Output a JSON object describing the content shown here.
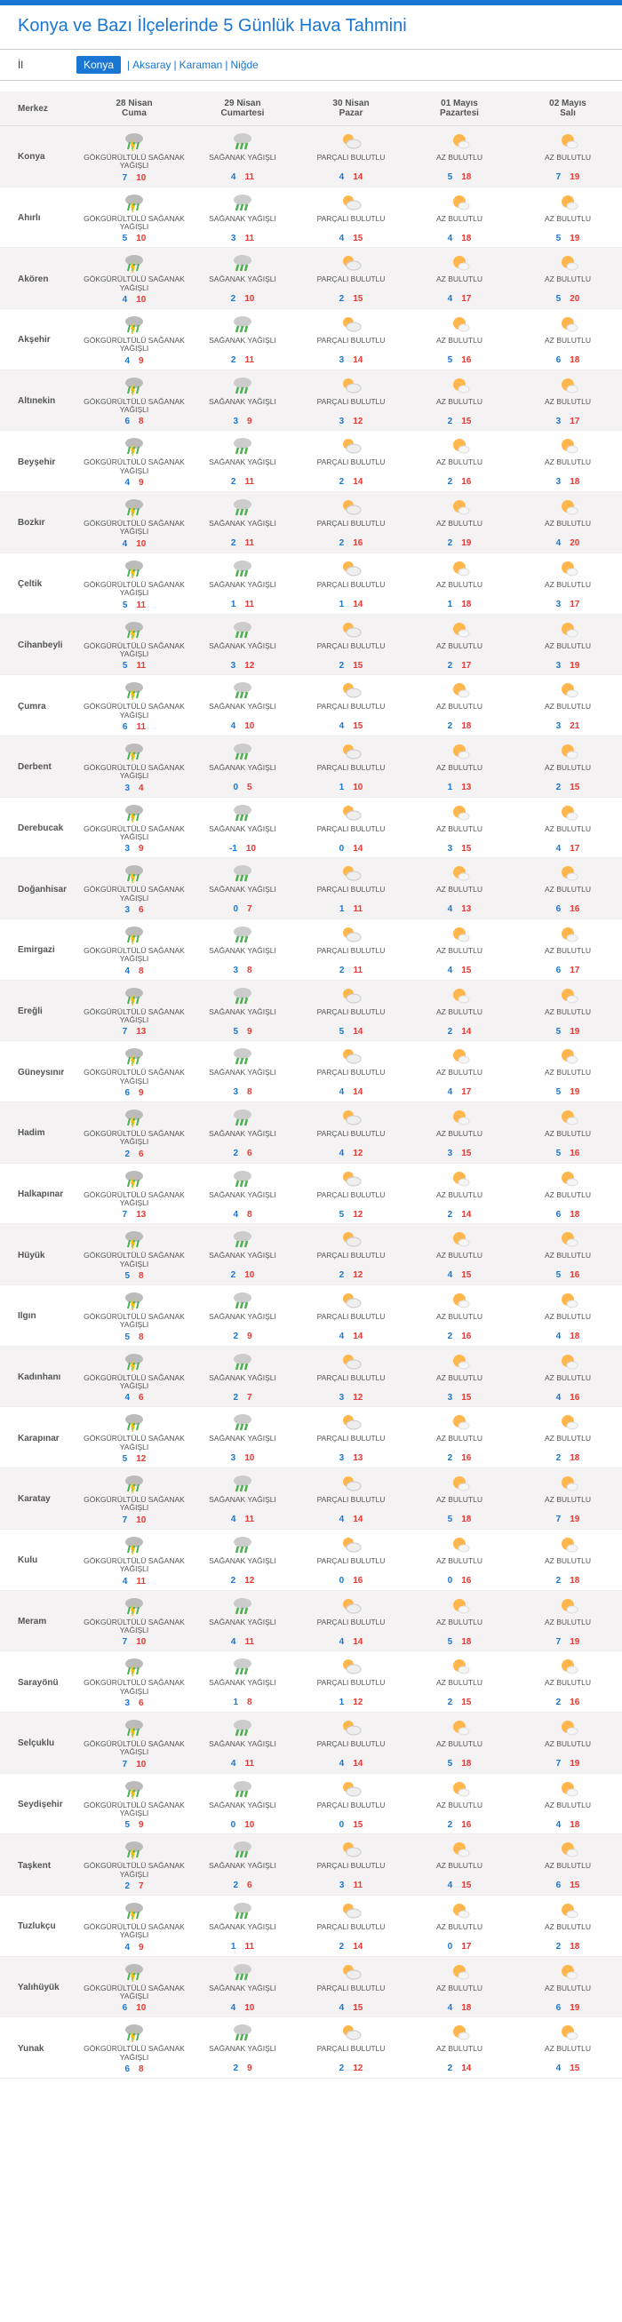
{
  "title": "Konya ve Bazı İlçelerinde 5 Günlük Hava Tahmini",
  "province_label": "İl",
  "provinces": [
    "Konya",
    "Aksaray",
    "Karaman",
    "Niğde"
  ],
  "selected_province": "Konya",
  "columns": [
    {
      "label": "Merkez"
    },
    {
      "date": "28 Nisan",
      "day": "Cuma"
    },
    {
      "date": "29 Nisan",
      "day": "Cumartesi"
    },
    {
      "date": "30 Nisan",
      "day": "Pazar"
    },
    {
      "date": "01 Mayıs",
      "day": "Pazartesi"
    },
    {
      "date": "02 Mayıs",
      "day": "Salı"
    }
  ],
  "icons": {
    "thunder": {
      "type": "thunder",
      "color1": "#4caf50",
      "color2": "#ffd54f"
    },
    "rain": {
      "type": "rain",
      "color": "#4caf50"
    },
    "partly": {
      "type": "partly",
      "sun": "#ffb74d",
      "cloud": "#fff"
    },
    "few": {
      "type": "few",
      "sun": "#ffb74d",
      "cloud": "#fff"
    }
  },
  "cond_labels": {
    "thunder": "GÖKGÜRÜLTÜLÜ SAĞANAK YAĞIŞLI",
    "rain": "SAĞANAK YAĞIŞLI",
    "partly": "PARÇALI BULUTLU",
    "few": "AZ BULUTLU"
  },
  "rows": [
    {
      "name": "Konya",
      "cells": [
        {
          "c": "thunder",
          "lo": 7,
          "hi": 10
        },
        {
          "c": "rain",
          "lo": 4,
          "hi": 11
        },
        {
          "c": "partly",
          "lo": 4,
          "hi": 14
        },
        {
          "c": "few",
          "lo": 5,
          "hi": 18
        },
        {
          "c": "few",
          "lo": 7,
          "hi": 19
        }
      ]
    },
    {
      "name": "Ahırlı",
      "cells": [
        {
          "c": "thunder",
          "lo": 5,
          "hi": 10
        },
        {
          "c": "rain",
          "lo": 3,
          "hi": 11
        },
        {
          "c": "partly",
          "lo": 4,
          "hi": 15
        },
        {
          "c": "few",
          "lo": 4,
          "hi": 18
        },
        {
          "c": "few",
          "lo": 5,
          "hi": 19
        }
      ]
    },
    {
      "name": "Akören",
      "cells": [
        {
          "c": "thunder",
          "lo": 4,
          "hi": 10
        },
        {
          "c": "rain",
          "lo": 2,
          "hi": 10
        },
        {
          "c": "partly",
          "lo": 2,
          "hi": 15
        },
        {
          "c": "few",
          "lo": 4,
          "hi": 17
        },
        {
          "c": "few",
          "lo": 5,
          "hi": 20
        }
      ]
    },
    {
      "name": "Akşehir",
      "cells": [
        {
          "c": "thunder",
          "lo": 4,
          "hi": 9
        },
        {
          "c": "rain",
          "lo": 2,
          "hi": 11
        },
        {
          "c": "partly",
          "lo": 3,
          "hi": 14
        },
        {
          "c": "few",
          "lo": 5,
          "hi": 16
        },
        {
          "c": "few",
          "lo": 6,
          "hi": 18
        }
      ]
    },
    {
      "name": "Altınekin",
      "cells": [
        {
          "c": "thunder",
          "lo": 6,
          "hi": 8
        },
        {
          "c": "rain",
          "lo": 3,
          "hi": 9
        },
        {
          "c": "partly",
          "lo": 3,
          "hi": 12
        },
        {
          "c": "few",
          "lo": 2,
          "hi": 15
        },
        {
          "c": "few",
          "lo": 3,
          "hi": 17
        }
      ]
    },
    {
      "name": "Beyşehir",
      "cells": [
        {
          "c": "thunder",
          "lo": 4,
          "hi": 9
        },
        {
          "c": "rain",
          "lo": 2,
          "hi": 11
        },
        {
          "c": "partly",
          "lo": 2,
          "hi": 14
        },
        {
          "c": "few",
          "lo": 2,
          "hi": 16
        },
        {
          "c": "few",
          "lo": 3,
          "hi": 18
        }
      ]
    },
    {
      "name": "Bozkır",
      "cells": [
        {
          "c": "thunder",
          "lo": 4,
          "hi": 10
        },
        {
          "c": "rain",
          "lo": 2,
          "hi": 11
        },
        {
          "c": "partly",
          "lo": 2,
          "hi": 16
        },
        {
          "c": "few",
          "lo": 2,
          "hi": 19
        },
        {
          "c": "few",
          "lo": 4,
          "hi": 20
        }
      ]
    },
    {
      "name": "Çeltik",
      "cells": [
        {
          "c": "thunder",
          "lo": 5,
          "hi": 11
        },
        {
          "c": "rain",
          "lo": 1,
          "hi": 11
        },
        {
          "c": "partly",
          "lo": 1,
          "hi": 14
        },
        {
          "c": "few",
          "lo": 1,
          "hi": 18
        },
        {
          "c": "few",
          "lo": 3,
          "hi": 17
        }
      ]
    },
    {
      "name": "Cihanbeyli",
      "cells": [
        {
          "c": "thunder",
          "lo": 5,
          "hi": 11
        },
        {
          "c": "rain",
          "lo": 3,
          "hi": 12
        },
        {
          "c": "partly",
          "lo": 2,
          "hi": 15
        },
        {
          "c": "few",
          "lo": 2,
          "hi": 17
        },
        {
          "c": "few",
          "lo": 3,
          "hi": 19
        }
      ]
    },
    {
      "name": "Çumra",
      "cells": [
        {
          "c": "thunder",
          "lo": 6,
          "hi": 11
        },
        {
          "c": "rain",
          "lo": 4,
          "hi": 10
        },
        {
          "c": "partly",
          "lo": 4,
          "hi": 15
        },
        {
          "c": "few",
          "lo": 2,
          "hi": 18
        },
        {
          "c": "few",
          "lo": 3,
          "hi": 21
        }
      ]
    },
    {
      "name": "Derbent",
      "cells": [
        {
          "c": "thunder",
          "lo": 3,
          "hi": 4
        },
        {
          "c": "rain",
          "lo": 0,
          "hi": 5
        },
        {
          "c": "partly",
          "lo": 1,
          "hi": 10
        },
        {
          "c": "few",
          "lo": 1,
          "hi": 13
        },
        {
          "c": "few",
          "lo": 2,
          "hi": 15
        }
      ]
    },
    {
      "name": "Derebucak",
      "cells": [
        {
          "c": "thunder",
          "lo": 3,
          "hi": 9
        },
        {
          "c": "rain",
          "lo": -1,
          "hi": 10
        },
        {
          "c": "partly",
          "lo": 0,
          "hi": 14
        },
        {
          "c": "few",
          "lo": 3,
          "hi": 15
        },
        {
          "c": "few",
          "lo": 4,
          "hi": 17
        }
      ]
    },
    {
      "name": "Doğanhisar",
      "cells": [
        {
          "c": "thunder",
          "lo": 3,
          "hi": 6
        },
        {
          "c": "rain",
          "lo": 0,
          "hi": 7
        },
        {
          "c": "partly",
          "lo": 1,
          "hi": 11
        },
        {
          "c": "few",
          "lo": 4,
          "hi": 13
        },
        {
          "c": "few",
          "lo": 6,
          "hi": 16
        }
      ]
    },
    {
      "name": "Emirgazi",
      "cells": [
        {
          "c": "thunder",
          "lo": 4,
          "hi": 8
        },
        {
          "c": "rain",
          "lo": 3,
          "hi": 8
        },
        {
          "c": "partly",
          "lo": 2,
          "hi": 11
        },
        {
          "c": "few",
          "lo": 4,
          "hi": 15
        },
        {
          "c": "few",
          "lo": 6,
          "hi": 17
        }
      ]
    },
    {
      "name": "Ereğli",
      "cells": [
        {
          "c": "thunder",
          "lo": 7,
          "hi": 13
        },
        {
          "c": "rain",
          "lo": 5,
          "hi": 9
        },
        {
          "c": "partly",
          "lo": 5,
          "hi": 14
        },
        {
          "c": "few",
          "lo": 2,
          "hi": 14
        },
        {
          "c": "few",
          "lo": 5,
          "hi": 19
        }
      ]
    },
    {
      "name": "Güneysınır",
      "cells": [
        {
          "c": "thunder",
          "lo": 6,
          "hi": 9
        },
        {
          "c": "rain",
          "lo": 3,
          "hi": 8
        },
        {
          "c": "partly",
          "lo": 4,
          "hi": 14
        },
        {
          "c": "few",
          "lo": 4,
          "hi": 17
        },
        {
          "c": "few",
          "lo": 5,
          "hi": 19
        }
      ]
    },
    {
      "name": "Hadim",
      "cells": [
        {
          "c": "thunder",
          "lo": 2,
          "hi": 6
        },
        {
          "c": "rain",
          "lo": 2,
          "hi": 6
        },
        {
          "c": "partly",
          "lo": 4,
          "hi": 12
        },
        {
          "c": "few",
          "lo": 3,
          "hi": 15
        },
        {
          "c": "few",
          "lo": 5,
          "hi": 16
        }
      ]
    },
    {
      "name": "Halkapınar",
      "cells": [
        {
          "c": "thunder",
          "lo": 7,
          "hi": 13
        },
        {
          "c": "rain",
          "lo": 4,
          "hi": 8
        },
        {
          "c": "partly",
          "lo": 5,
          "hi": 12
        },
        {
          "c": "few",
          "lo": 2,
          "hi": 14
        },
        {
          "c": "few",
          "lo": 6,
          "hi": 18
        }
      ]
    },
    {
      "name": "Hüyük",
      "cells": [
        {
          "c": "thunder",
          "lo": 5,
          "hi": 8
        },
        {
          "c": "rain",
          "lo": 2,
          "hi": 10
        },
        {
          "c": "partly",
          "lo": 2,
          "hi": 12
        },
        {
          "c": "few",
          "lo": 4,
          "hi": 15
        },
        {
          "c": "few",
          "lo": 5,
          "hi": 16
        }
      ]
    },
    {
      "name": "Ilgın",
      "cells": [
        {
          "c": "thunder",
          "lo": 5,
          "hi": 8
        },
        {
          "c": "rain",
          "lo": 2,
          "hi": 9
        },
        {
          "c": "partly",
          "lo": 4,
          "hi": 14
        },
        {
          "c": "few",
          "lo": 2,
          "hi": 16
        },
        {
          "c": "few",
          "lo": 4,
          "hi": 18
        }
      ]
    },
    {
      "name": "Kadınhanı",
      "cells": [
        {
          "c": "thunder",
          "lo": 4,
          "hi": 6
        },
        {
          "c": "rain",
          "lo": 2,
          "hi": 7
        },
        {
          "c": "partly",
          "lo": 3,
          "hi": 12
        },
        {
          "c": "few",
          "lo": 3,
          "hi": 15
        },
        {
          "c": "few",
          "lo": 4,
          "hi": 16
        }
      ]
    },
    {
      "name": "Karapınar",
      "cells": [
        {
          "c": "thunder",
          "lo": 5,
          "hi": 12
        },
        {
          "c": "rain",
          "lo": 3,
          "hi": 10
        },
        {
          "c": "partly",
          "lo": 3,
          "hi": 13
        },
        {
          "c": "few",
          "lo": 2,
          "hi": 16
        },
        {
          "c": "few",
          "lo": 2,
          "hi": 18
        }
      ]
    },
    {
      "name": "Karatay",
      "cells": [
        {
          "c": "thunder",
          "lo": 7,
          "hi": 10
        },
        {
          "c": "rain",
          "lo": 4,
          "hi": 11
        },
        {
          "c": "partly",
          "lo": 4,
          "hi": 14
        },
        {
          "c": "few",
          "lo": 5,
          "hi": 18
        },
        {
          "c": "few",
          "lo": 7,
          "hi": 19
        }
      ]
    },
    {
      "name": "Kulu",
      "cells": [
        {
          "c": "thunder",
          "lo": 4,
          "hi": 11
        },
        {
          "c": "rain",
          "lo": 2,
          "hi": 12
        },
        {
          "c": "partly",
          "lo": 0,
          "hi": 16
        },
        {
          "c": "few",
          "lo": 0,
          "hi": 16
        },
        {
          "c": "few",
          "lo": 2,
          "hi": 18
        }
      ]
    },
    {
      "name": "Meram",
      "cells": [
        {
          "c": "thunder",
          "lo": 7,
          "hi": 10
        },
        {
          "c": "rain",
          "lo": 4,
          "hi": 11
        },
        {
          "c": "partly",
          "lo": 4,
          "hi": 14
        },
        {
          "c": "few",
          "lo": 5,
          "hi": 18
        },
        {
          "c": "few",
          "lo": 7,
          "hi": 19
        }
      ]
    },
    {
      "name": "Sarayönü",
      "cells": [
        {
          "c": "thunder",
          "lo": 3,
          "hi": 6
        },
        {
          "c": "rain",
          "lo": 1,
          "hi": 8
        },
        {
          "c": "partly",
          "lo": 1,
          "hi": 12
        },
        {
          "c": "few",
          "lo": 2,
          "hi": 15
        },
        {
          "c": "few",
          "lo": 2,
          "hi": 16
        }
      ]
    },
    {
      "name": "Selçuklu",
      "cells": [
        {
          "c": "thunder",
          "lo": 7,
          "hi": 10
        },
        {
          "c": "rain",
          "lo": 4,
          "hi": 11
        },
        {
          "c": "partly",
          "lo": 4,
          "hi": 14
        },
        {
          "c": "few",
          "lo": 5,
          "hi": 18
        },
        {
          "c": "few",
          "lo": 7,
          "hi": 19
        }
      ]
    },
    {
      "name": "Seydişehir",
      "cells": [
        {
          "c": "thunder",
          "lo": 5,
          "hi": 9
        },
        {
          "c": "rain",
          "lo": 0,
          "hi": 10
        },
        {
          "c": "partly",
          "lo": 0,
          "hi": 15
        },
        {
          "c": "few",
          "lo": 2,
          "hi": 16
        },
        {
          "c": "few",
          "lo": 4,
          "hi": 18
        }
      ]
    },
    {
      "name": "Taşkent",
      "cells": [
        {
          "c": "thunder",
          "lo": 2,
          "hi": 7
        },
        {
          "c": "rain",
          "lo": 2,
          "hi": 6
        },
        {
          "c": "partly",
          "lo": 3,
          "hi": 11
        },
        {
          "c": "few",
          "lo": 4,
          "hi": 15
        },
        {
          "c": "few",
          "lo": 6,
          "hi": 15
        }
      ]
    },
    {
      "name": "Tuzlukçu",
      "cells": [
        {
          "c": "thunder",
          "lo": 4,
          "hi": 9
        },
        {
          "c": "rain",
          "lo": 1,
          "hi": 11
        },
        {
          "c": "partly",
          "lo": 2,
          "hi": 14
        },
        {
          "c": "few",
          "lo": 0,
          "hi": 17
        },
        {
          "c": "few",
          "lo": 2,
          "hi": 18
        }
      ]
    },
    {
      "name": "Yalıhüyük",
      "cells": [
        {
          "c": "thunder",
          "lo": 6,
          "hi": 10
        },
        {
          "c": "rain",
          "lo": 4,
          "hi": 10
        },
        {
          "c": "partly",
          "lo": 4,
          "hi": 15
        },
        {
          "c": "few",
          "lo": 4,
          "hi": 18
        },
        {
          "c": "few",
          "lo": 6,
          "hi": 19
        }
      ]
    },
    {
      "name": "Yunak",
      "cells": [
        {
          "c": "thunder",
          "lo": 6,
          "hi": 8
        },
        {
          "c": "rain",
          "lo": 2,
          "hi": 9
        },
        {
          "c": "partly",
          "lo": 2,
          "hi": 12
        },
        {
          "c": "few",
          "lo": 2,
          "hi": 14
        },
        {
          "c": "few",
          "lo": 4,
          "hi": 15
        }
      ]
    }
  ]
}
